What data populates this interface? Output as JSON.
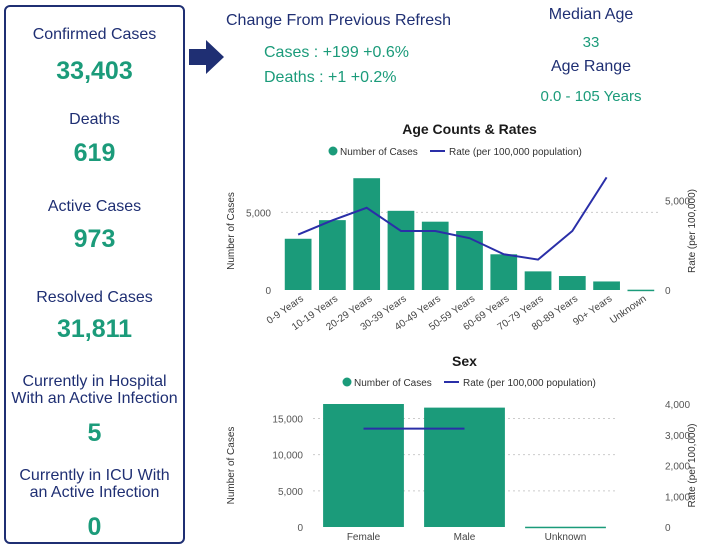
{
  "stats": {
    "confirmed_label": "Confirmed Cases",
    "confirmed_value": "33,403",
    "deaths_label": "Deaths",
    "deaths_value": "619",
    "active_label": "Active Cases",
    "active_value": "973",
    "resolved_label": "Resolved Cases",
    "resolved_value": "31,811",
    "hospital_label_1": "Currently in Hospital",
    "hospital_label_2": "With an Active Infection",
    "hospital_value": "5",
    "icu_label_1": "Currently in ICU With",
    "icu_label_2": "an Active Infection",
    "icu_value": "0"
  },
  "change": {
    "title": "Change From Previous Refresh",
    "cases": "Cases : +199 +0.6%",
    "deaths": "Deaths : +1 +0.2%"
  },
  "age_summary": {
    "median_label": "Median Age",
    "median_value": "33",
    "range_label": "Age Range",
    "range_value": "0.0 - 105 Years"
  },
  "colors": {
    "navy": "#1f2f73",
    "teal": "#1b9b7a",
    "line": "#2a2fa8",
    "grid": "#cccccc"
  },
  "chart_data": [
    {
      "type": "bar",
      "title": "Age Counts & Rates",
      "legend": [
        "Number of Cases",
        "Rate (per 100,000 population)"
      ],
      "categories": [
        "0-9 Years",
        "10-19 Years",
        "20-29 Years",
        "30-39 Years",
        "40-49 Years",
        "50-59 Years",
        "60-69 Years",
        "70-79 Years",
        "80-89 Years",
        "90+ Years",
        "Unknown"
      ],
      "series": [
        {
          "name": "Number of Cases",
          "axis": "left",
          "values": [
            3300,
            4500,
            7200,
            5100,
            4400,
            3800,
            2300,
            1200,
            900,
            550,
            20
          ]
        },
        {
          "name": "Rate (per 100,000 population)",
          "axis": "right",
          "type": "line",
          "values": [
            3100,
            3900,
            4600,
            3300,
            3300,
            2900,
            2000,
            1700,
            3300,
            6300,
            null
          ]
        }
      ],
      "ylabel": "Number of Cases",
      "y2label": "Rate (per 100,000)",
      "ylim": [
        0,
        7600
      ],
      "yticks": [
        0,
        5000
      ],
      "ytick_labels": [
        "0",
        "5,000"
      ],
      "y2lim": [
        0,
        6600
      ],
      "y2ticks": [
        0,
        5000
      ],
      "y2tick_labels": [
        "0",
        "5,000"
      ]
    },
    {
      "type": "bar",
      "title": "Sex",
      "legend": [
        "Number of Cases",
        "Rate (per 100,000 population)"
      ],
      "categories": [
        "Female",
        "Male",
        "Unknown"
      ],
      "series": [
        {
          "name": "Number of Cases",
          "axis": "left",
          "values": [
            17000,
            16500,
            40
          ]
        },
        {
          "name": "Rate (per 100,000 population)",
          "axis": "right",
          "type": "line",
          "values": [
            3200,
            3200,
            null
          ]
        }
      ],
      "ylabel": "Number of Cases",
      "y2label": "Rate (per 100,000)",
      "ylim": [
        0,
        17000
      ],
      "yticks": [
        0,
        5000,
        10000,
        15000
      ],
      "ytick_labels": [
        "0",
        "5,000",
        "10,000",
        "15,000"
      ],
      "y2lim": [
        0,
        4000
      ],
      "y2ticks": [
        0,
        1000,
        2000,
        3000,
        4000
      ],
      "y2tick_labels": [
        "0",
        "1,000",
        "2,000",
        "3,000",
        "4,000"
      ]
    }
  ]
}
